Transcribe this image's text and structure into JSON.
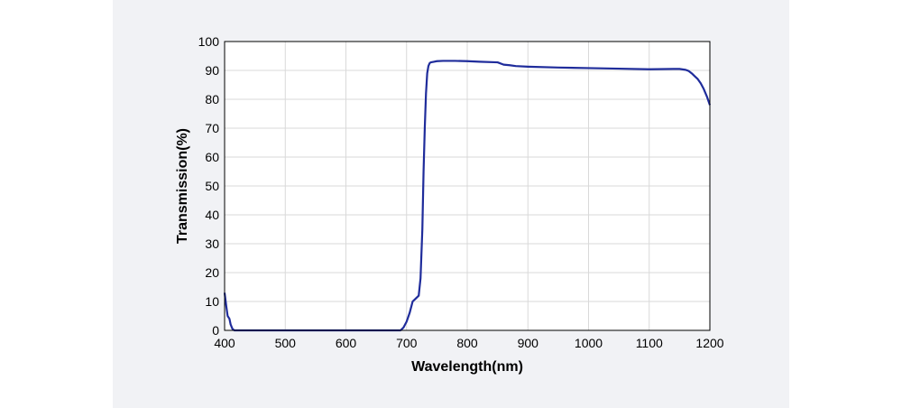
{
  "chart_data": {
    "type": "line",
    "title": "",
    "xlabel": "Wavelength(nm)",
    "ylabel": "Transmission(%)",
    "xlim": [
      400,
      1200
    ],
    "ylim": [
      0,
      100
    ],
    "x_ticks": [
      "400",
      "500",
      "600",
      "700",
      "800",
      "900",
      "1000",
      "1100",
      "1200"
    ],
    "y_ticks": [
      "0",
      "10",
      "20",
      "30",
      "40",
      "50",
      "60",
      "70",
      "80",
      "90",
      "100"
    ],
    "grid": true,
    "legend": "none",
    "colors": {
      "line": "#1f2c9b",
      "grid": "#d9d9d9",
      "axis": "#000000",
      "plot_bg": "#ffffff"
    },
    "series": [
      {
        "x": [
          400,
          403,
          405,
          408,
          410,
          413,
          416,
          420,
          450,
          500,
          550,
          600,
          650,
          690,
          695,
          700,
          705,
          710,
          715,
          720,
          723,
          726,
          728,
          730,
          732,
          734,
          736,
          738,
          740,
          745,
          750,
          760,
          780,
          800,
          820,
          850,
          860,
          870,
          880,
          900,
          950,
          1000,
          1050,
          1100,
          1140,
          1150,
          1160,
          1165,
          1170,
          1175,
          1180,
          1185,
          1190,
          1195,
          1200
        ],
        "y": [
          13,
          8,
          5,
          4,
          2,
          0.5,
          0,
          0,
          0,
          0,
          0,
          0,
          0,
          0,
          1,
          3,
          6,
          10,
          11,
          12,
          18,
          35,
          55,
          70,
          82,
          89,
          91.5,
          92.5,
          92.8,
          93,
          93.2,
          93.3,
          93.3,
          93.2,
          93,
          92.8,
          92,
          91.8,
          91.5,
          91.3,
          91,
          90.8,
          90.6,
          90.4,
          90.5,
          90.5,
          90.2,
          89.8,
          89,
          88,
          87,
          85.5,
          83.5,
          81,
          78
        ]
      }
    ]
  }
}
